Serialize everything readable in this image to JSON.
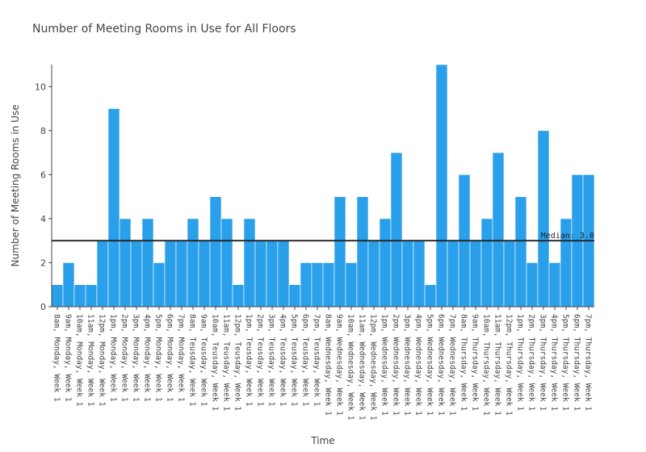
{
  "chart_data": {
    "type": "bar",
    "title": "Number of Meeting Rooms in Use for All Floors",
    "xlabel": "Time",
    "ylabel": "Number of Meeting Rooms in Use",
    "ylim": [
      0,
      11
    ],
    "yticks": [
      0,
      2,
      4,
      6,
      8,
      10
    ],
    "bar_color": "#2A9FEA",
    "median_line_color": "#222222",
    "median": {
      "value": 3,
      "label": "Median: 3.0"
    },
    "categories": [
      "8am, Monday, Week 1",
      "9am, Monday, Week 1",
      "10am, Monday, Week 1",
      "11am, Monday, Week 1",
      "12pm, Monday, Week 1",
      "1pm, Monday, Week 1",
      "2pm, Monday, Week 1",
      "3pm, Monday, Week 1",
      "4pm, Monday, Week 1",
      "5pm, Monday, Week 1",
      "6pm, Monday, Week 1",
      "7pm, Monday, Week 1",
      "8am, Teusday, Week 1",
      "9am, Teusday, Week 1",
      "10am, Teusday, Week 1",
      "11am, Teusday, Week 1",
      "12pm, Teusday, Week 1",
      "1pm, Teusday, Week 1",
      "2pm, Teusday, Week 1",
      "3pm, Teusday, Week 1",
      "4pm, Teusday, Week 1",
      "5pm, Teusday, Week 1",
      "6pm, Teusday, Week 1",
      "7pm, Teusday, Week 1",
      "8am, Wednesday, Week 1",
      "9am, Wednesday, Week 1",
      "10am, Wednesday, Week 1",
      "11am, Wednesday, Week 1",
      "12pm, Wednesday, Week 1",
      "1pm, Wednesday, Week 1",
      "2pm, Wednesday, Week 1",
      "3pm, Wednesday, Week 1",
      "4pm, Wednesday, Week 1",
      "5pm, Wednesday, Week 1",
      "6pm, Wednesday, Week 1",
      "7pm, Wednesday, Week 1",
      "8am, Thursday, Week 1",
      "9am, Thursday, Week 1",
      "10am, Thursday, Week 1",
      "11am, Thursday, Week 1",
      "12pm, Thursday, Week 1",
      "1pm, Thursday, Week 1",
      "2pm, Thursday, Week 1",
      "3pm, Thursday, Week 1",
      "4pm, Thursday, Week 1",
      "5pm, Thursday, Week 1",
      "6pm, Thursday, Week 1",
      "7pm, Thursday, Week 1"
    ],
    "values": [
      1,
      2,
      1,
      1,
      3,
      9,
      4,
      3,
      4,
      2,
      3,
      3,
      4,
      3,
      5,
      4,
      1,
      4,
      3,
      3,
      3,
      1,
      2,
      2,
      2,
      5,
      2,
      5,
      3,
      4,
      7,
      3,
      3,
      1,
      11,
      3,
      6,
      3,
      4,
      7,
      3,
      5,
      2,
      8,
      2,
      4,
      6,
      6
    ]
  }
}
